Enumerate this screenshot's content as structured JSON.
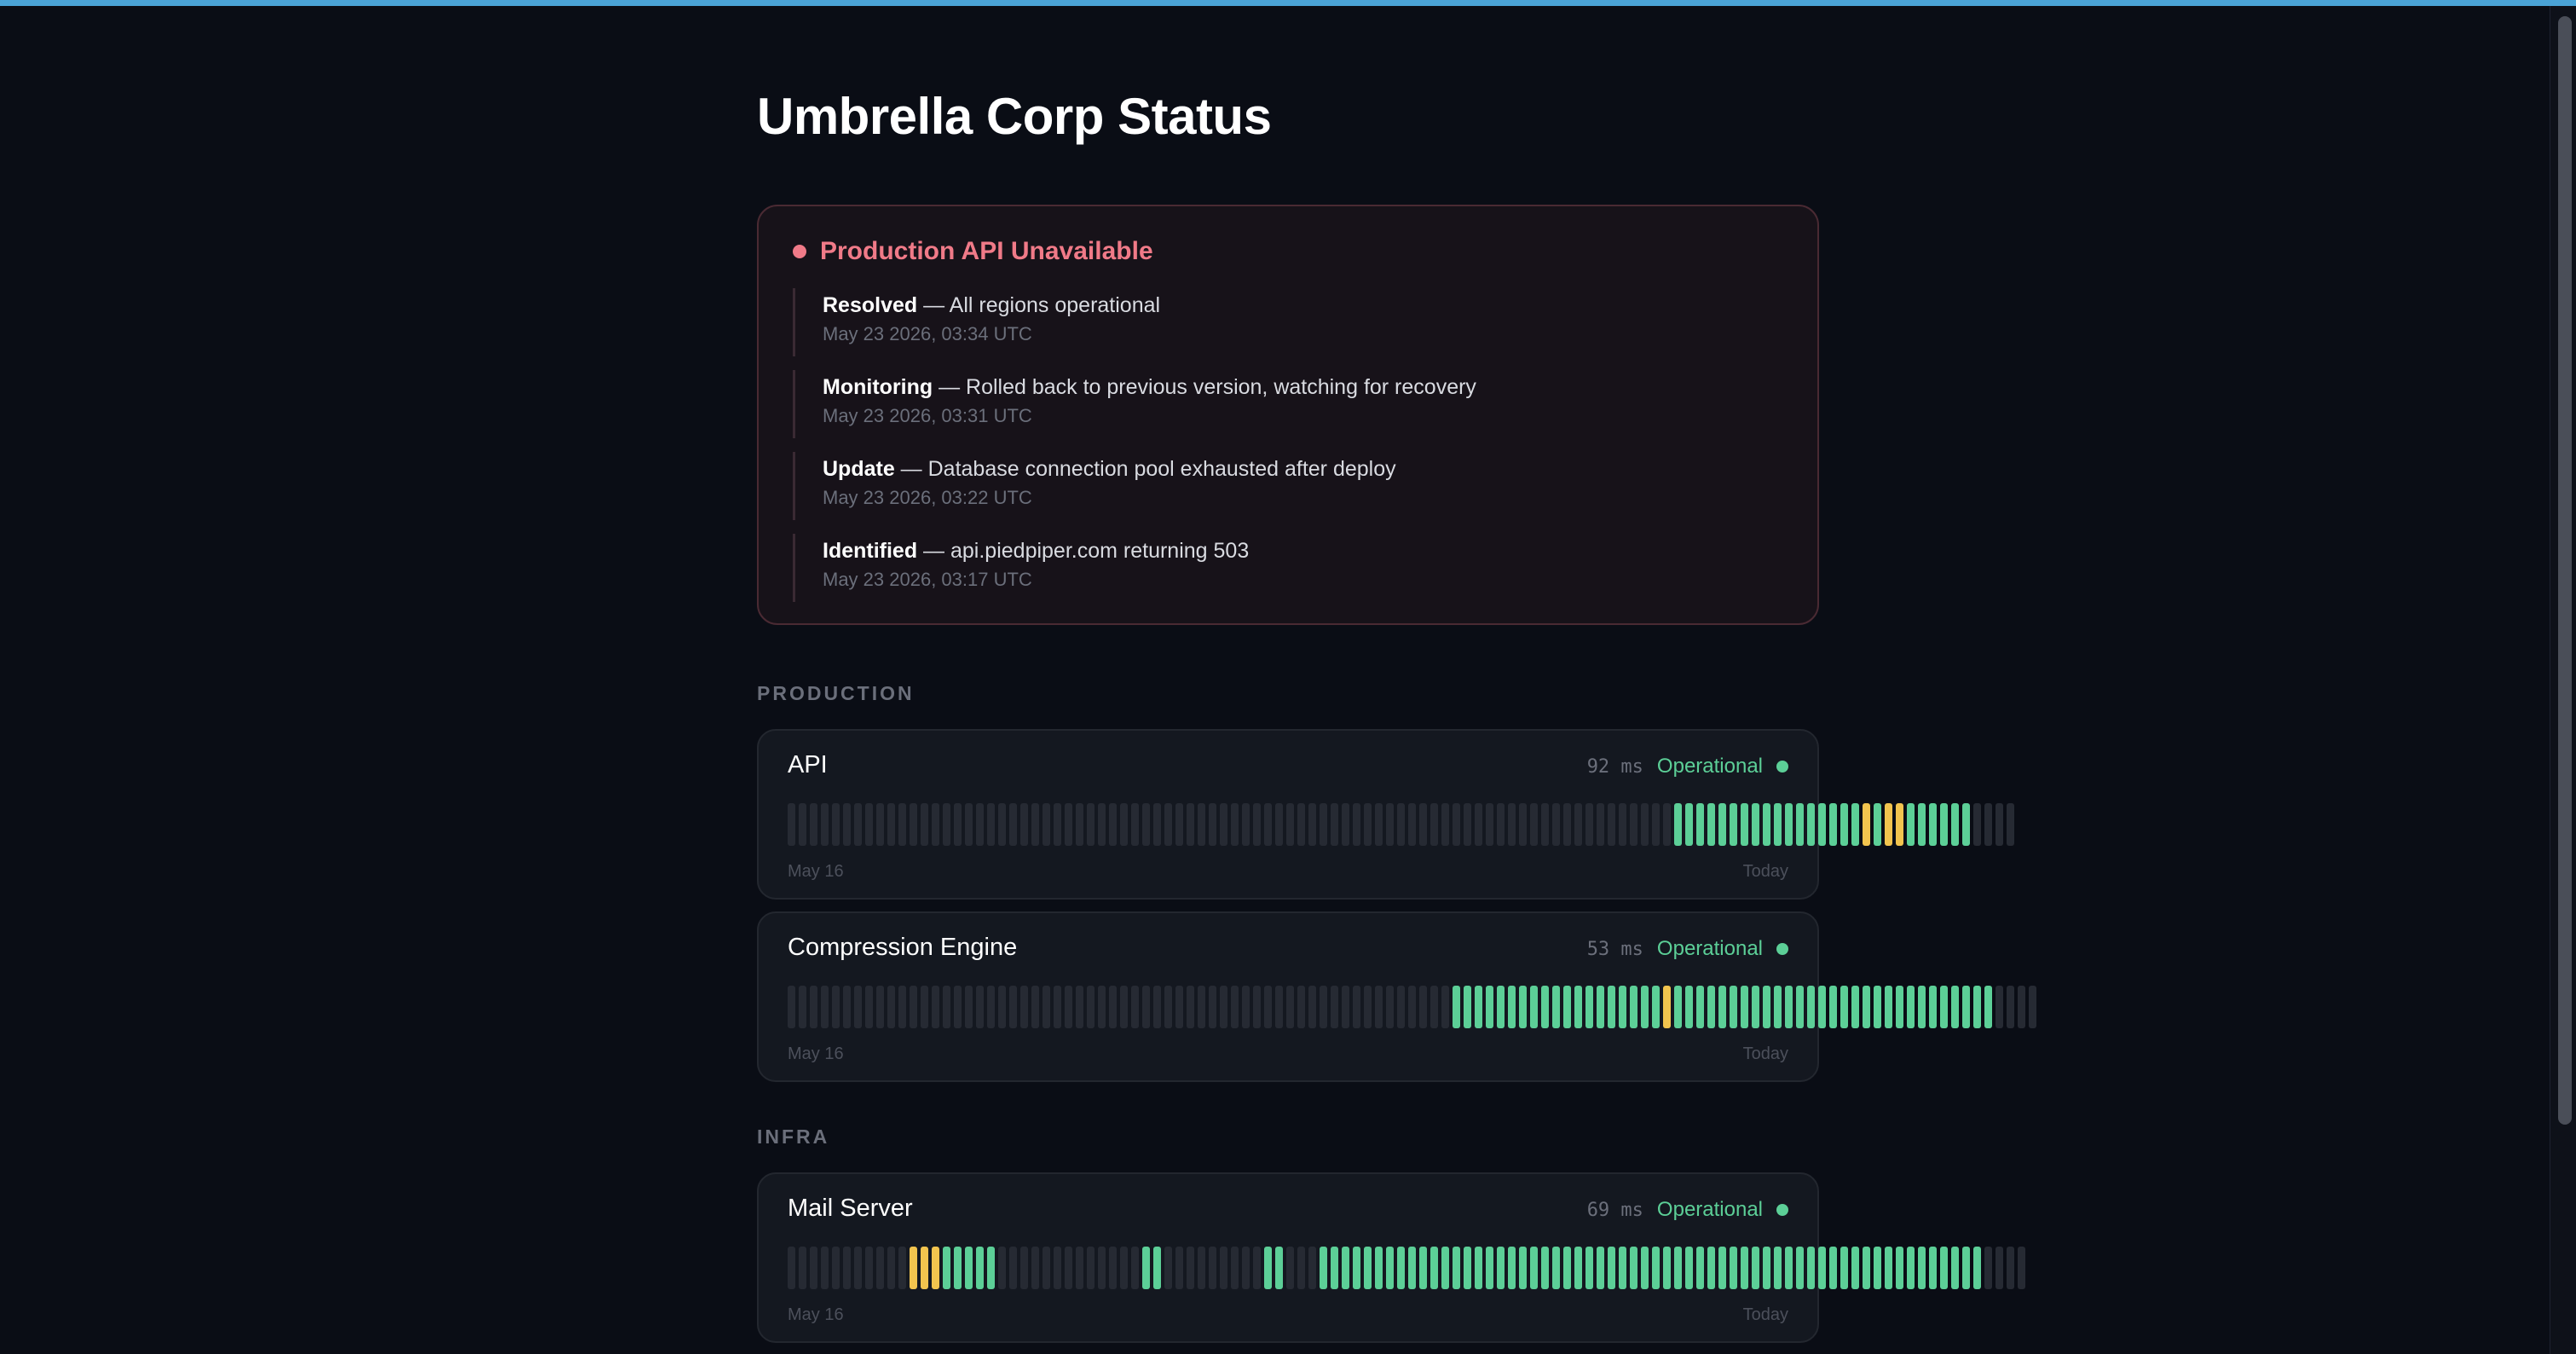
{
  "page": {
    "title": "Umbrella Corp Status"
  },
  "incident": {
    "title": "Production API Unavailable",
    "updates": [
      {
        "status": "Resolved",
        "message": " — All regions operational",
        "time": "May 23 2026, 03:34 UTC"
      },
      {
        "status": "Monitoring",
        "message": " — Rolled back to previous version, watching for recovery",
        "time": "May 23 2026, 03:31 UTC"
      },
      {
        "status": "Update",
        "message": " — Database connection pool exhausted after deploy",
        "time": "May 23 2026, 03:22 UTC"
      },
      {
        "status": "Identified",
        "message": " — api.piedpiper.com returning 503",
        "time": "May 23 2026, 03:17 UTC"
      }
    ]
  },
  "groups": [
    {
      "label": "PRODUCTION",
      "services": [
        {
          "name": "API",
          "latency": "92 ms",
          "status": "Operational",
          "history": "................................................................................ooooooooooooooooowowwoooooo....",
          "axis_start": "May 16",
          "axis_end": "Today"
        },
        {
          "name": "Compression Engine",
          "latency": "53 ms",
          "status": "Operational",
          "history": "............................................................ooooooooooooooooooowooooooooooooooooooooooooooooo....",
          "axis_start": "May 16",
          "axis_end": "Today"
        }
      ]
    },
    {
      "label": "INFRA",
      "services": [
        {
          "name": "Mail Server",
          "latency": "69 ms",
          "status": "Operational",
          "history": "...........wwwooooo.............oo.........oo...oooooooooooooooooooooooooooooooooooooooooooooooooooooooooooo....",
          "axis_start": "May 16",
          "axis_end": "Today"
        }
      ]
    }
  ],
  "colors": {
    "operational": "#5ccf97",
    "degraded": "#f2c44e",
    "nodata": "#262a33",
    "incident": "#f07a88",
    "accent": "#4aa3d6"
  }
}
